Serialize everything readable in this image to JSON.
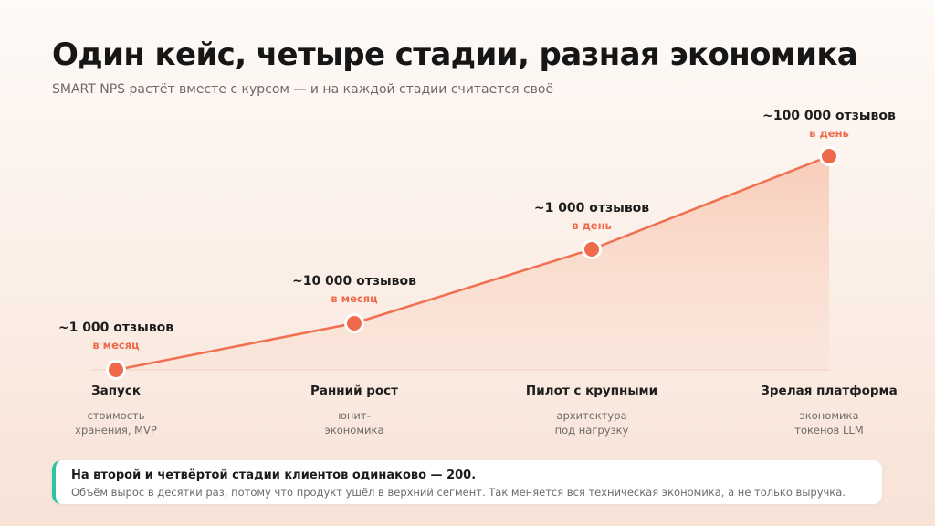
{
  "header": {
    "title": "Один кейс, четыре стадии, разная экономика",
    "subtitle": "SMART NPS растёт вместе с курсом — и на каждой стадии считается своё"
  },
  "colors": {
    "accent": "#ef6a4b",
    "line": "#f0704f",
    "area": "#f9d3c3",
    "callout_border": "#2ec4a0"
  },
  "stages": [
    {
      "name": "Запуск",
      "desc_lines": [
        "стоимость",
        "хранения, MVP"
      ],
      "metric_value": "~1 000 отзывов",
      "metric_period": "в месяц"
    },
    {
      "name": "Ранний рост",
      "desc_lines": [
        "юнит-",
        "экономика"
      ],
      "metric_value": "~10 000 отзывов",
      "metric_period": "в месяц"
    },
    {
      "name": "Пилот с крупными",
      "desc_lines": [
        "архитектура",
        "под нагрузку"
      ],
      "metric_value": "~1 000 отзывов",
      "metric_period": "в день"
    },
    {
      "name": "Зрелая платформа",
      "desc_lines": [
        "экономика",
        "токенов LLM"
      ],
      "metric_value": "~100 000 отзывов",
      "metric_period": "в день"
    }
  ],
  "callout": {
    "title": "На второй и четвёртой стадии клиентов одинаково — 200.",
    "text": "Объём вырос в десятки раз, потому что продукт ушёл в верхний сегмент. Так меняется вся техническая экономика, а не только выручка."
  }
}
